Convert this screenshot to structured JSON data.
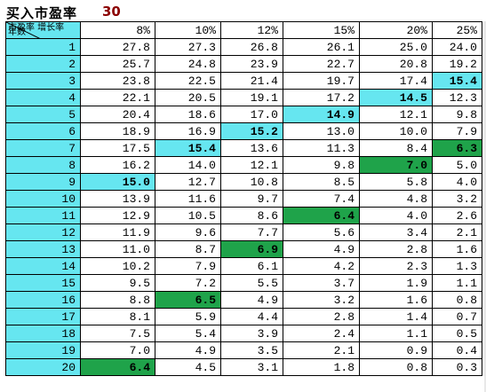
{
  "header": {
    "title": "买入市盈率",
    "pe_value": "30"
  },
  "table": {
    "corner_top": "市盈率 增长率",
    "corner_bottom": "年数",
    "columns": [
      "8%",
      "10%",
      "12%",
      "15%",
      "20%",
      "25%"
    ],
    "rows": [
      {
        "year": "1",
        "values": [
          "27.8",
          "27.3",
          "26.8",
          "26.1",
          "25.0",
          "24.0"
        ]
      },
      {
        "year": "2",
        "values": [
          "25.7",
          "24.8",
          "23.9",
          "22.7",
          "20.8",
          "19.2"
        ]
      },
      {
        "year": "3",
        "values": [
          "23.8",
          "22.5",
          "21.4",
          "19.7",
          "17.4",
          "15.4"
        ]
      },
      {
        "year": "4",
        "values": [
          "22.1",
          "20.5",
          "19.1",
          "17.2",
          "14.5",
          "12.3"
        ]
      },
      {
        "year": "5",
        "values": [
          "20.4",
          "18.6",
          "17.0",
          "14.9",
          "12.1",
          "9.8"
        ]
      },
      {
        "year": "6",
        "values": [
          "18.9",
          "16.9",
          "15.2",
          "13.0",
          "10.0",
          "7.9"
        ]
      },
      {
        "year": "7",
        "values": [
          "17.5",
          "15.4",
          "13.6",
          "11.3",
          "8.4",
          "6.3"
        ]
      },
      {
        "year": "8",
        "values": [
          "16.2",
          "14.0",
          "12.1",
          "9.8",
          "7.0",
          "5.0"
        ]
      },
      {
        "year": "9",
        "values": [
          "15.0",
          "12.7",
          "10.8",
          "8.5",
          "5.8",
          "4.0"
        ]
      },
      {
        "year": "10",
        "values": [
          "13.9",
          "11.6",
          "9.7",
          "7.4",
          "4.8",
          "3.2"
        ]
      },
      {
        "year": "11",
        "values": [
          "12.9",
          "10.5",
          "8.6",
          "6.4",
          "4.0",
          "2.6"
        ]
      },
      {
        "year": "12",
        "values": [
          "11.9",
          "9.6",
          "7.7",
          "5.6",
          "3.4",
          "2.1"
        ]
      },
      {
        "year": "13",
        "values": [
          "11.0",
          "8.7",
          "6.9",
          "4.9",
          "2.8",
          "1.6"
        ]
      },
      {
        "year": "14",
        "values": [
          "10.2",
          "7.9",
          "6.1",
          "4.2",
          "2.3",
          "1.3"
        ]
      },
      {
        "year": "15",
        "values": [
          "9.5",
          "7.2",
          "5.5",
          "3.7",
          "1.9",
          "1.1"
        ]
      },
      {
        "year": "16",
        "values": [
          "8.8",
          "6.5",
          "4.9",
          "3.2",
          "1.6",
          "0.8"
        ]
      },
      {
        "year": "17",
        "values": [
          "8.1",
          "5.9",
          "4.4",
          "2.8",
          "1.4",
          "0.7"
        ]
      },
      {
        "year": "18",
        "values": [
          "7.5",
          "5.4",
          "3.9",
          "2.4",
          "1.1",
          "0.5"
        ]
      },
      {
        "year": "19",
        "values": [
          "7.0",
          "4.9",
          "3.5",
          "2.1",
          "0.9",
          "0.4"
        ]
      },
      {
        "year": "20",
        "values": [
          "6.4",
          "4.5",
          "3.1",
          "1.8",
          "0.8",
          "0.3"
        ]
      }
    ],
    "highlights": [
      {
        "row": 2,
        "col": 5,
        "style": "cyan"
      },
      {
        "row": 3,
        "col": 4,
        "style": "cyan"
      },
      {
        "row": 4,
        "col": 3,
        "style": "cyan"
      },
      {
        "row": 5,
        "col": 2,
        "style": "cyan"
      },
      {
        "row": 6,
        "col": 1,
        "style": "cyan"
      },
      {
        "row": 8,
        "col": 0,
        "style": "cyan"
      },
      {
        "row": 6,
        "col": 5,
        "style": "green"
      },
      {
        "row": 7,
        "col": 4,
        "style": "green"
      },
      {
        "row": 10,
        "col": 3,
        "style": "green"
      },
      {
        "row": 12,
        "col": 2,
        "style": "green"
      },
      {
        "row": 15,
        "col": 1,
        "style": "green"
      },
      {
        "row": 19,
        "col": 0,
        "style": "green"
      }
    ]
  },
  "colors": {
    "cyan_highlight": "#66e6f0",
    "green_highlight": "#1fa34a",
    "highlight_text": "#c00000",
    "pe_value": "#8b0000"
  }
}
